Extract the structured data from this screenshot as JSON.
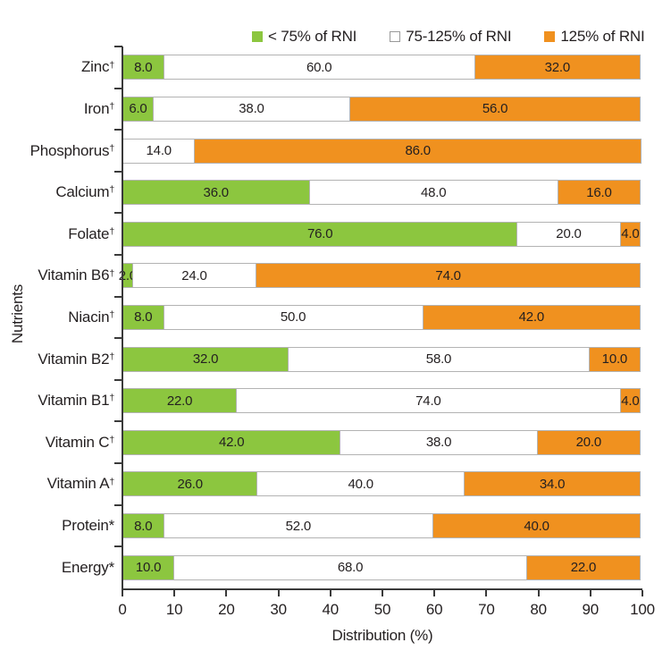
{
  "chart_data": {
    "type": "bar",
    "orientation": "horizontal",
    "stacked": true,
    "title": "",
    "xlabel": "Distribution (%)",
    "ylabel": "Nutrients",
    "xlim": [
      0,
      100
    ],
    "xticks": [
      0,
      10,
      20,
      30,
      40,
      50,
      60,
      70,
      80,
      90,
      100
    ],
    "grid": false,
    "legend_position": "top",
    "value_format": "one-decimal",
    "categories": [
      {
        "name": "Zinc",
        "marker": "†"
      },
      {
        "name": "Iron",
        "marker": "†"
      },
      {
        "name": "Phosphorus",
        "marker": "†"
      },
      {
        "name": "Calcium",
        "marker": "†"
      },
      {
        "name": "Folate",
        "marker": "†"
      },
      {
        "name": "Vitamin B6",
        "marker": "†"
      },
      {
        "name": "Niacin",
        "marker": "†"
      },
      {
        "name": "Vitamin B2",
        "marker": "†"
      },
      {
        "name": "Vitamin B1",
        "marker": "†"
      },
      {
        "name": "Vitamin C",
        "marker": "†"
      },
      {
        "name": "Vitamin A",
        "marker": "†"
      },
      {
        "name": "Protein",
        "marker": "*"
      },
      {
        "name": "Energy",
        "marker": "*"
      }
    ],
    "series": [
      {
        "name": "< 75% of RNI",
        "color": "#8CC63F",
        "values": [
          8,
          6,
          0,
          36,
          76,
          2,
          8,
          32,
          22,
          42,
          26,
          8,
          10
        ]
      },
      {
        "name": "75-125% of RNI",
        "color": "#FFFFFF",
        "values": [
          60,
          38,
          14,
          48,
          20,
          24,
          50,
          58,
          74,
          38,
          40,
          52,
          68
        ]
      },
      {
        "name": "125% of RNI",
        "color": "#F0911F",
        "values": [
          32,
          56,
          86,
          16,
          4,
          74,
          42,
          10,
          4,
          20,
          34,
          40,
          22
        ]
      }
    ],
    "colors": {
      "segment_border": "#b3b3b3",
      "axis": "#3a3a3a",
      "text": "#231f20"
    }
  }
}
